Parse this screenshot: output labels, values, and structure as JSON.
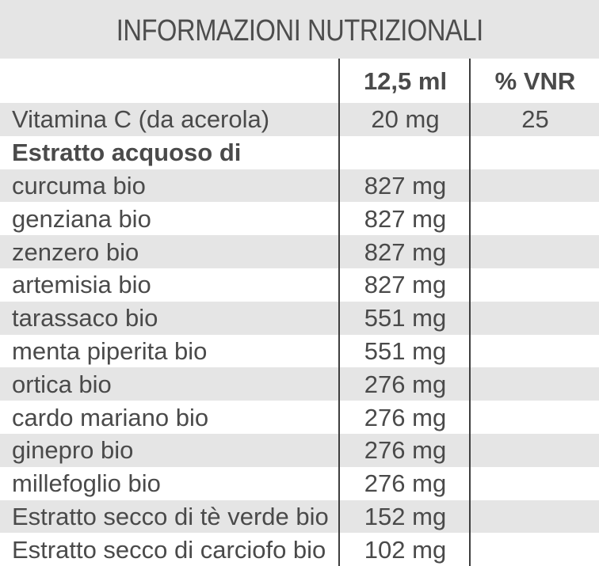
{
  "title": "INFORMAZIONI NUTRIZIONALI",
  "columns": {
    "quantity": "12,5 ml",
    "vnr": "% VNR"
  },
  "rows": [
    {
      "name": "Vitamina C (da acerola)",
      "qty": "20 mg",
      "vnr": "25"
    },
    {
      "name": "Estratto acquoso di",
      "qty": "",
      "vnr": ""
    },
    {
      "name": "curcuma bio",
      "qty": "827 mg",
      "vnr": ""
    },
    {
      "name": "genziana bio",
      "qty": "827 mg",
      "vnr": ""
    },
    {
      "name": "zenzero bio",
      "qty": "827 mg",
      "vnr": ""
    },
    {
      "name": "artemisia bio",
      "qty": "827 mg",
      "vnr": ""
    },
    {
      "name": "tarassaco bio",
      "qty": "551 mg",
      "vnr": ""
    },
    {
      "name": "menta piperita bio",
      "qty": "551 mg",
      "vnr": ""
    },
    {
      "name": "ortica bio",
      "qty": "276 mg",
      "vnr": ""
    },
    {
      "name": "cardo mariano bio",
      "qty": "276 mg",
      "vnr": ""
    },
    {
      "name": "ginepro bio",
      "qty": "276 mg",
      "vnr": ""
    },
    {
      "name": "millefoglio bio",
      "qty": "276 mg",
      "vnr": ""
    },
    {
      "name": "Estratto secco di tè verde bio",
      "qty": "152 mg",
      "vnr": ""
    },
    {
      "name": "Estratto secco di carciofo bio",
      "qty": "102 mg",
      "vnr": ""
    }
  ]
}
